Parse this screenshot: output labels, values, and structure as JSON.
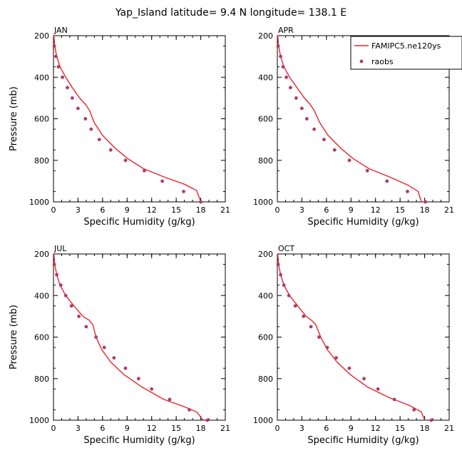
{
  "figure": {
    "title": "Yap_Island  latitude= 9.4 N longitude= 138.1 E"
  },
  "legend": {
    "model_label": "FAMIPC5.ne120ys",
    "obs_label": "raobs"
  },
  "colors": {
    "model_line": "#e8262a",
    "obs_marker": "#b03a6a",
    "axis": "#000000"
  },
  "chart_data": [
    {
      "type": "line",
      "panel": "JAN",
      "xlabel": "Specific Humidity (g/kg)",
      "ylabel": "Pressure (mb)",
      "xlim": [
        0,
        21
      ],
      "ylim": [
        1000,
        200
      ],
      "xticks": [
        0,
        3,
        6,
        9,
        12,
        15,
        18,
        21
      ],
      "yticks": [
        200,
        400,
        600,
        800,
        1000
      ],
      "series": [
        {
          "name": "FAMIPC5.ne120ys",
          "kind": "line",
          "x": [
            0.05,
            0.15,
            0.4,
            0.8,
            1.5,
            2.3,
            3.2,
            3.9,
            4.4,
            5.0,
            6.0,
            7.5,
            9.0,
            11.0,
            13.5,
            16.0,
            17.5,
            18.0
          ],
          "y": [
            200,
            250,
            300,
            350,
            400,
            450,
            500,
            530,
            560,
            620,
            680,
            740,
            790,
            840,
            880,
            915,
            945,
            1000
          ]
        },
        {
          "name": "raobs",
          "kind": "scatter",
          "x": [
            0.1,
            0.3,
            0.6,
            1.1,
            1.7,
            2.3,
            3.0,
            3.9,
            4.6,
            5.6,
            7.0,
            8.8,
            11.1,
            13.3,
            15.9,
            18.0
          ],
          "y": [
            250,
            300,
            350,
            400,
            450,
            500,
            550,
            600,
            650,
            700,
            750,
            800,
            850,
            900,
            950,
            1000
          ]
        }
      ]
    },
    {
      "type": "line",
      "panel": "APR",
      "xlabel": "Specific Humidity (g/kg)",
      "ylabel": "",
      "xlim": [
        0,
        21
      ],
      "ylim": [
        1000,
        200
      ],
      "xticks": [
        0,
        3,
        6,
        9,
        12,
        15,
        18,
        21
      ],
      "yticks": [
        200,
        400,
        600,
        800,
        1000
      ],
      "series": [
        {
          "name": "FAMIPC5.ne120ys",
          "kind": "line",
          "x": [
            0.05,
            0.15,
            0.4,
            0.8,
            1.5,
            2.4,
            3.3,
            4.0,
            4.5,
            5.2,
            6.2,
            7.7,
            9.2,
            11.2,
            13.7,
            16.0,
            17.2,
            17.6
          ],
          "y": [
            200,
            250,
            300,
            350,
            400,
            450,
            500,
            530,
            560,
            620,
            680,
            740,
            790,
            840,
            880,
            920,
            950,
            1000
          ]
        },
        {
          "name": "raobs",
          "kind": "scatter",
          "x": [
            0.1,
            0.4,
            0.7,
            1.1,
            1.6,
            2.3,
            3.0,
            3.6,
            4.5,
            5.7,
            7.0,
            8.8,
            11.0,
            13.4,
            15.9,
            18.1
          ],
          "y": [
            250,
            300,
            350,
            400,
            450,
            500,
            550,
            600,
            650,
            700,
            750,
            800,
            850,
            900,
            950,
            1000
          ]
        }
      ]
    },
    {
      "type": "line",
      "panel": "JUL",
      "xlabel": "Specific Humidity (g/kg)",
      "ylabel": "Pressure (mb)",
      "xlim": [
        0,
        21
      ],
      "ylim": [
        1000,
        200
      ],
      "xticks": [
        0,
        3,
        6,
        9,
        12,
        15,
        18,
        21
      ],
      "yticks": [
        200,
        400,
        600,
        800,
        1000
      ],
      "series": [
        {
          "name": "FAMIPC5.ne120ys",
          "kind": "line",
          "x": [
            0.05,
            0.15,
            0.4,
            0.8,
            1.5,
            2.5,
            3.6,
            4.4,
            4.8,
            5.2,
            5.9,
            7.0,
            8.6,
            10.8,
            13.5,
            16.0,
            17.5,
            18.3
          ],
          "y": [
            200,
            250,
            300,
            350,
            400,
            450,
            500,
            520,
            540,
            600,
            660,
            720,
            780,
            840,
            900,
            935,
            960,
            1000
          ]
        },
        {
          "name": "raobs",
          "kind": "scatter",
          "x": [
            0.1,
            0.4,
            0.9,
            1.5,
            2.2,
            3.1,
            4.0,
            5.2,
            6.2,
            7.4,
            8.8,
            10.4,
            12.0,
            14.2,
            16.6,
            18.8
          ],
          "y": [
            250,
            300,
            350,
            400,
            450,
            500,
            550,
            600,
            650,
            700,
            750,
            800,
            850,
            900,
            950,
            1000
          ]
        }
      ]
    },
    {
      "type": "line",
      "panel": "OCT",
      "xlabel": "Specific Humidity (g/kg)",
      "ylabel": "",
      "xlim": [
        0,
        21
      ],
      "ylim": [
        1000,
        200
      ],
      "xticks": [
        0,
        3,
        6,
        9,
        12,
        15,
        18,
        21
      ],
      "yticks": [
        200,
        400,
        600,
        800,
        1000
      ],
      "series": [
        {
          "name": "FAMIPC5.ne120ys",
          "kind": "line",
          "x": [
            0.05,
            0.15,
            0.4,
            0.8,
            1.5,
            2.5,
            3.5,
            4.2,
            4.7,
            5.3,
            6.1,
            7.3,
            8.9,
            11.0,
            13.6,
            16.2,
            17.6,
            18.0
          ],
          "y": [
            200,
            250,
            300,
            350,
            400,
            450,
            500,
            520,
            540,
            600,
            660,
            720,
            780,
            840,
            890,
            930,
            960,
            1000
          ]
        },
        {
          "name": "raobs",
          "kind": "scatter",
          "x": [
            0.1,
            0.4,
            0.8,
            1.4,
            2.2,
            3.2,
            4.1,
            5.1,
            6.1,
            7.2,
            8.8,
            10.6,
            12.3,
            14.3,
            16.7,
            18.8
          ],
          "y": [
            250,
            300,
            350,
            400,
            450,
            500,
            550,
            600,
            650,
            700,
            750,
            800,
            850,
            900,
            950,
            1000
          ]
        }
      ]
    }
  ]
}
